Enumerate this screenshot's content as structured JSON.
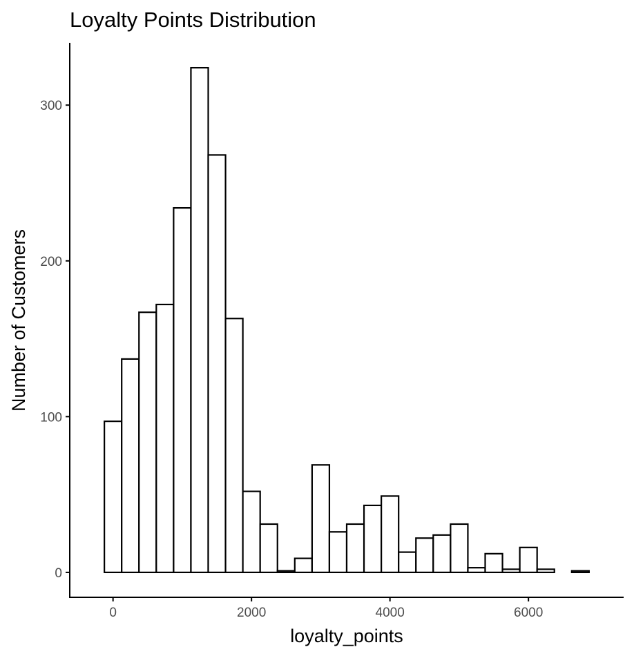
{
  "chart_data": {
    "type": "bar",
    "title": "Loyalty Points Distribution",
    "xlabel": "loyalty_points",
    "ylabel": "Number of Customers",
    "bin_width": 250,
    "bins": [
      {
        "x0": -125,
        "x1": 125,
        "count": 97
      },
      {
        "x0": 125,
        "x1": 375,
        "count": 137
      },
      {
        "x0": 375,
        "x1": 625,
        "count": 167
      },
      {
        "x0": 625,
        "x1": 875,
        "count": 172
      },
      {
        "x0": 875,
        "x1": 1125,
        "count": 234
      },
      {
        "x0": 1125,
        "x1": 1375,
        "count": 324
      },
      {
        "x0": 1375,
        "x1": 1625,
        "count": 268
      },
      {
        "x0": 1625,
        "x1": 1875,
        "count": 163
      },
      {
        "x0": 1875,
        "x1": 2125,
        "count": 52
      },
      {
        "x0": 2125,
        "x1": 2375,
        "count": 31
      },
      {
        "x0": 2375,
        "x1": 2625,
        "count": 1
      },
      {
        "x0": 2625,
        "x1": 2875,
        "count": 9
      },
      {
        "x0": 2875,
        "x1": 3125,
        "count": 69
      },
      {
        "x0": 3125,
        "x1": 3375,
        "count": 26
      },
      {
        "x0": 3375,
        "x1": 3625,
        "count": 31
      },
      {
        "x0": 3625,
        "x1": 3875,
        "count": 43
      },
      {
        "x0": 3875,
        "x1": 4125,
        "count": 49
      },
      {
        "x0": 4125,
        "x1": 4375,
        "count": 13
      },
      {
        "x0": 4375,
        "x1": 4625,
        "count": 22
      },
      {
        "x0": 4625,
        "x1": 4875,
        "count": 24
      },
      {
        "x0": 4875,
        "x1": 5125,
        "count": 31
      },
      {
        "x0": 5125,
        "x1": 5375,
        "count": 3
      },
      {
        "x0": 5375,
        "x1": 5625,
        "count": 12
      },
      {
        "x0": 5625,
        "x1": 5875,
        "count": 2
      },
      {
        "x0": 5875,
        "x1": 6125,
        "count": 16
      },
      {
        "x0": 6125,
        "x1": 6375,
        "count": 2
      },
      {
        "x0": 6375,
        "x1": 6625,
        "count": 0
      },
      {
        "x0": 6625,
        "x1": 6875,
        "count": 1
      }
    ],
    "xlim": [
      -625,
      7375
    ],
    "ylim": [
      -16,
      340
    ],
    "xticks": [
      0,
      2000,
      4000,
      6000
    ],
    "xtick_labels": [
      "0",
      "2000",
      "4000",
      "6000"
    ],
    "yticks": [
      0,
      100,
      200,
      300
    ],
    "ytick_labels": [
      "0",
      "100",
      "200",
      "300"
    ],
    "grid": false,
    "legend": "none",
    "colors": {
      "bar_fill": "#ffffff",
      "bar_stroke": "#000000",
      "axis": "#000000",
      "tick_label": "#4d4d4d"
    }
  }
}
